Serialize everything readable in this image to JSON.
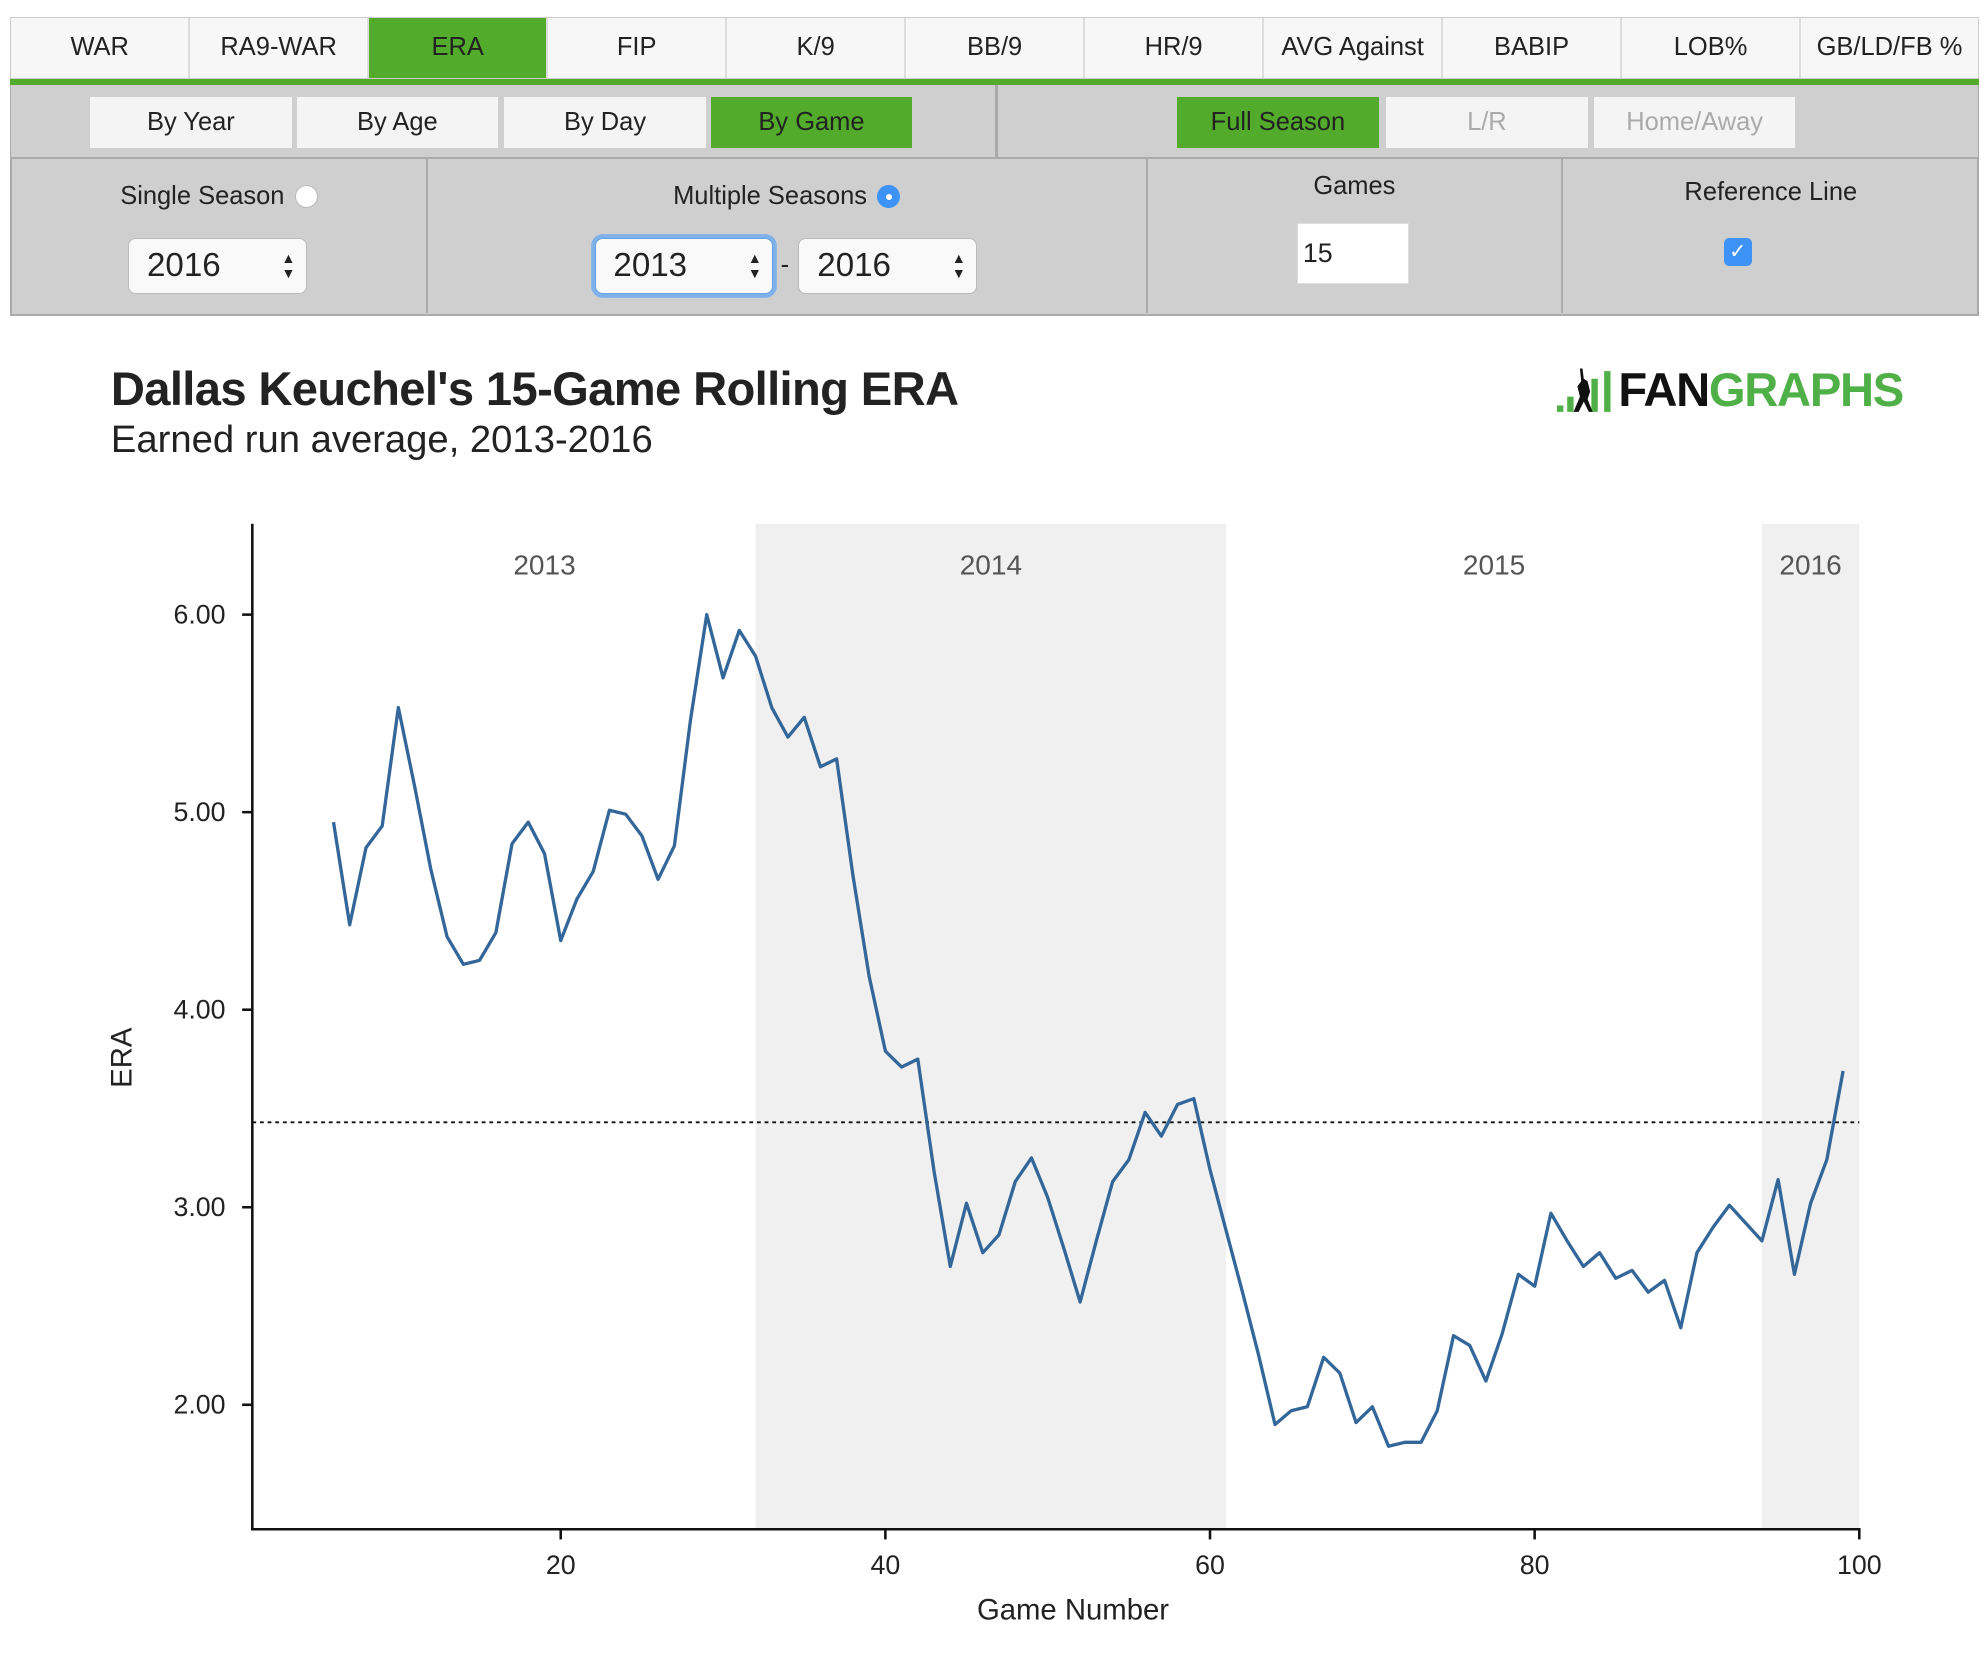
{
  "tabs": [
    {
      "label": "WAR",
      "active": false
    },
    {
      "label": "RA9-WAR",
      "active": false
    },
    {
      "label": "ERA",
      "active": true
    },
    {
      "label": "FIP",
      "active": false
    },
    {
      "label": "K/9",
      "active": false
    },
    {
      "label": "BB/9",
      "active": false
    },
    {
      "label": "HR/9",
      "active": false
    },
    {
      "label": "AVG Against",
      "active": false
    },
    {
      "label": "BABIP",
      "active": false
    },
    {
      "label": "LOB%",
      "active": false
    },
    {
      "label": "GB/LD/FB %",
      "active": false
    }
  ],
  "view_buttons": [
    "By Year",
    "By Age",
    "By Day",
    "By Game"
  ],
  "view_active": "By Game",
  "split_buttons": [
    "Full Season",
    "L/R",
    "Home/Away"
  ],
  "split_active": "Full Season",
  "controls": {
    "single_season_label": "Single Season",
    "single_season_value": "2016",
    "multiple_seasons_label": "Multiple Seasons",
    "multiple_from": "2013",
    "multiple_separator": "-",
    "multiple_to": "2016",
    "games_label": "Games",
    "games_value": "15",
    "reference_line_label": "Reference Line",
    "reference_line_checked": true
  },
  "logo": {
    "part1": "FAN",
    "part2": "GRAPHS"
  },
  "colors": {
    "accent": "#52ab2a",
    "line": "#336699",
    "band": "#f0f0f0",
    "logo_green": "#4fb047"
  },
  "chart_data": {
    "type": "line",
    "title": "Dallas Keuchel's 15-Game Rolling ERA",
    "subtitle": "Earned run average, 2013-2016",
    "xlabel": "Game Number",
    "ylabel": "ERA",
    "xlim": [
      1,
      100
    ],
    "ylim": [
      1.37,
      6.46
    ],
    "xticks": [
      20,
      40,
      60,
      80,
      100
    ],
    "yticks": [
      "2.00",
      "3.00",
      "4.00",
      "5.00",
      "6.00"
    ],
    "grid": false,
    "reference_line": 3.43,
    "seasons": [
      {
        "label": "2013",
        "start": 6,
        "end": 32,
        "shaded": false
      },
      {
        "label": "2014",
        "start": 32,
        "end": 61,
        "shaded": true
      },
      {
        "label": "2015",
        "start": 61,
        "end": 94,
        "shaded": false
      },
      {
        "label": "2016",
        "start": 94,
        "end": 100,
        "shaded": true
      }
    ],
    "x_start": 6,
    "values": [
      4.95,
      4.43,
      4.82,
      4.93,
      5.53,
      5.13,
      4.71,
      4.37,
      4.23,
      4.25,
      4.39,
      4.84,
      4.95,
      4.79,
      4.35,
      4.56,
      4.7,
      5.01,
      4.99,
      4.88,
      4.66,
      4.83,
      5.47,
      6.0,
      5.68,
      5.92,
      5.79,
      5.53,
      5.38,
      5.48,
      5.23,
      5.27,
      4.68,
      4.17,
      3.79,
      3.71,
      3.75,
      3.18,
      2.7,
      3.02,
      2.77,
      2.86,
      3.13,
      3.25,
      3.05,
      2.79,
      2.52,
      2.83,
      3.13,
      3.24,
      3.48,
      3.36,
      3.52,
      3.55,
      3.19,
      2.88,
      2.57,
      2.25,
      1.9,
      1.97,
      1.99,
      2.24,
      2.16,
      1.91,
      1.99,
      1.79,
      1.81,
      1.81,
      1.97,
      2.35,
      2.3,
      2.12,
      2.36,
      2.66,
      2.6,
      2.97,
      2.83,
      2.7,
      2.77,
      2.64,
      2.68,
      2.57,
      2.63,
      2.39,
      2.77,
      2.9,
      3.01,
      2.92,
      2.83,
      3.14,
      2.66,
      3.02,
      3.24,
      3.69
    ]
  }
}
